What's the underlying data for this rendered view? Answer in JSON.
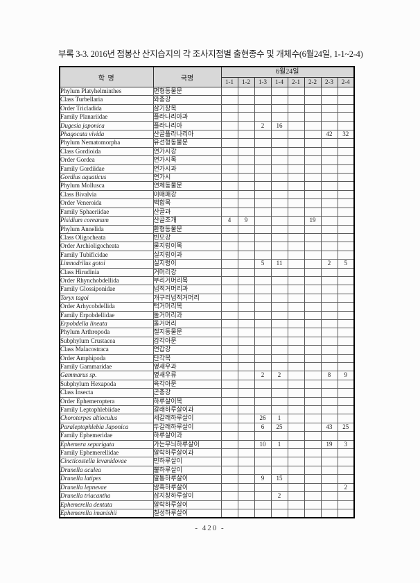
{
  "title": "부록 3-3. 2016년 점봉산 산지습지의 각 조사지점별 출현종수 및 개체수(6월24일, 1-1~2-4)",
  "page_number": "- 420 -",
  "table": {
    "col1_header": "학 명",
    "col2_header": "국명",
    "date_header": "6월24일",
    "site_headers": [
      "1-1",
      "1-2",
      "1-3",
      "1-4",
      "2-1",
      "2-2",
      "2-3",
      "2-4"
    ],
    "rows": [
      {
        "sci": "Phylum Platyhelminthes",
        "kor": "편형동물문",
        "indent": 0,
        "italic": false,
        "values": [
          "",
          "",
          "",
          "",
          "",
          "",
          "",
          ""
        ]
      },
      {
        "sci": "Class Turbellaria",
        "kor": "와충강",
        "indent": 1,
        "italic": false,
        "values": [
          "",
          "",
          "",
          "",
          "",
          "",
          "",
          ""
        ]
      },
      {
        "sci": "Order Tricladida",
        "kor": "삼기장목",
        "indent": 2,
        "italic": false,
        "values": [
          "",
          "",
          "",
          "",
          "",
          "",
          "",
          ""
        ]
      },
      {
        "sci": "Family Planariidae",
        "kor": "플라나리아과",
        "indent": 3,
        "italic": false,
        "values": [
          "",
          "",
          "",
          "",
          "",
          "",
          "",
          ""
        ]
      },
      {
        "sci": "Dugesia japonica",
        "kor": "플라나리아",
        "indent": 0,
        "italic": true,
        "values": [
          "",
          "",
          "2",
          "16",
          "",
          "",
          "",
          ""
        ]
      },
      {
        "sci": "Phagocata vivida",
        "kor": "산골플라나리아",
        "indent": 0,
        "italic": true,
        "values": [
          "",
          "",
          "",
          "",
          "",
          "",
          "42",
          "32"
        ]
      },
      {
        "sci": "Phylum Nematomorpha",
        "kor": "유선형동물문",
        "indent": 0,
        "italic": false,
        "values": [
          "",
          "",
          "",
          "",
          "",
          "",
          "",
          ""
        ]
      },
      {
        "sci": "Class Gordioida",
        "kor": "연가시강",
        "indent": 1,
        "italic": false,
        "values": [
          "",
          "",
          "",
          "",
          "",
          "",
          "",
          ""
        ]
      },
      {
        "sci": "Order Gordea",
        "kor": "연가시목",
        "indent": 2,
        "italic": false,
        "values": [
          "",
          "",
          "",
          "",
          "",
          "",
          "",
          ""
        ]
      },
      {
        "sci": "Family Gordiidae",
        "kor": "연가시과",
        "indent": 3,
        "italic": false,
        "values": [
          "",
          "",
          "",
          "",
          "",
          "",
          "",
          ""
        ]
      },
      {
        "sci": "Gordius aquaticus",
        "kor": "연가시",
        "indent": 0,
        "italic": true,
        "values": [
          "",
          "",
          "",
          "",
          "",
          "",
          "",
          ""
        ]
      },
      {
        "sci": "Phylum Mollusca",
        "kor": "연체동물문",
        "indent": 0,
        "italic": false,
        "values": [
          "",
          "",
          "",
          "",
          "",
          "",
          "",
          ""
        ]
      },
      {
        "sci": "Class Bivalvia",
        "kor": "이매패강",
        "indent": 1,
        "italic": false,
        "values": [
          "",
          "",
          "",
          "",
          "",
          "",
          "",
          ""
        ]
      },
      {
        "sci": "Order Veneroida",
        "kor": "백합목",
        "indent": 2,
        "italic": false,
        "values": [
          "",
          "",
          "",
          "",
          "",
          "",
          "",
          ""
        ]
      },
      {
        "sci": "Family Sphaeriidae",
        "kor": "산골과",
        "indent": 3,
        "italic": false,
        "values": [
          "",
          "",
          "",
          "",
          "",
          "",
          "",
          ""
        ]
      },
      {
        "sci": "Pisidium coreanum",
        "kor": "산골조개",
        "indent": 0,
        "italic": true,
        "values": [
          "4",
          "9",
          "",
          "",
          "",
          "19",
          "",
          ""
        ]
      },
      {
        "sci": "Phylum Annelida",
        "kor": "환형동물문",
        "indent": 0,
        "italic": false,
        "values": [
          "",
          "",
          "",
          "",
          "",
          "",
          "",
          ""
        ]
      },
      {
        "sci": "Class Oligocheata",
        "kor": "빈모강",
        "indent": 1,
        "italic": false,
        "values": [
          "",
          "",
          "",
          "",
          "",
          "",
          "",
          ""
        ]
      },
      {
        "sci": "Order Archioligocheata",
        "kor": "물지렁이목",
        "indent": 2,
        "italic": false,
        "values": [
          "",
          "",
          "",
          "",
          "",
          "",
          "",
          ""
        ]
      },
      {
        "sci": "Family Tubificidae",
        "kor": "실지렁이과",
        "indent": 3,
        "italic": false,
        "values": [
          "",
          "",
          "",
          "",
          "",
          "",
          "",
          ""
        ]
      },
      {
        "sci": "Limnodrilus gotoi",
        "kor": "실지렁이",
        "indent": 0,
        "italic": true,
        "values": [
          "",
          "",
          "5",
          "11",
          "",
          "",
          "2",
          "5"
        ]
      },
      {
        "sci": "Class Hirudinia",
        "kor": "거머리강",
        "indent": 1,
        "italic": false,
        "values": [
          "",
          "",
          "",
          "",
          "",
          "",
          "",
          ""
        ]
      },
      {
        "sci": "Order Rhynchobdellida",
        "kor": "부리거머리목",
        "indent": 2,
        "italic": false,
        "values": [
          "",
          "",
          "",
          "",
          "",
          "",
          "",
          ""
        ]
      },
      {
        "sci": "Family Glossiponidae",
        "kor": "넙적거머리과",
        "indent": 3,
        "italic": false,
        "values": [
          "",
          "",
          "",
          "",
          "",
          "",
          "",
          ""
        ]
      },
      {
        "sci": "Toryx tagoi",
        "kor": "개구리넙적거머리",
        "indent": 0,
        "italic": true,
        "values": [
          "",
          "",
          "",
          "",
          "",
          "",
          "",
          ""
        ]
      },
      {
        "sci": "Order Arhycobdellida",
        "kor": "턱거머리목",
        "indent": 2,
        "italic": false,
        "values": [
          "",
          "",
          "",
          "",
          "",
          "",
          "",
          ""
        ]
      },
      {
        "sci": "Family Erpobdellidae",
        "kor": "돌거머리과",
        "indent": 3,
        "italic": false,
        "values": [
          "",
          "",
          "",
          "",
          "",
          "",
          "",
          ""
        ]
      },
      {
        "sci": "Erpobdella lineata",
        "kor": "돌거머리",
        "indent": 0,
        "italic": true,
        "values": [
          "",
          "",
          "",
          "",
          "",
          "",
          "",
          ""
        ]
      },
      {
        "sci": "Phylum Arthropoda",
        "kor": "절지동물문",
        "indent": 0,
        "italic": false,
        "values": [
          "",
          "",
          "",
          "",
          "",
          "",
          "",
          ""
        ]
      },
      {
        "sci": "Subphylum Crustacea",
        "kor": "갑각아문",
        "indent": 1,
        "italic": false,
        "values": [
          "",
          "",
          "",
          "",
          "",
          "",
          "",
          ""
        ]
      },
      {
        "sci": "Class Malacostraca",
        "kor": "연갑강",
        "indent": 1,
        "italic": false,
        "values": [
          "",
          "",
          "",
          "",
          "",
          "",
          "",
          ""
        ]
      },
      {
        "sci": "Order Amphipoda",
        "kor": "단각목",
        "indent": 2,
        "italic": false,
        "values": [
          "",
          "",
          "",
          "",
          "",
          "",
          "",
          ""
        ]
      },
      {
        "sci": "Family Gammaridae",
        "kor": "옆새우과",
        "indent": 3,
        "italic": false,
        "values": [
          "",
          "",
          "",
          "",
          "",
          "",
          "",
          ""
        ]
      },
      {
        "sci": "Gammarus sp.",
        "kor": "옆새우류",
        "indent": 0,
        "italic": true,
        "values": [
          "",
          "",
          "2",
          "2",
          "",
          "",
          "8",
          "9"
        ]
      },
      {
        "sci": "Subphylum Hexapoda",
        "kor": "육각아문",
        "indent": 1,
        "italic": false,
        "values": [
          "",
          "",
          "",
          "",
          "",
          "",
          "",
          ""
        ]
      },
      {
        "sci": "Class Insecta",
        "kor": "곤충강",
        "indent": 1,
        "italic": false,
        "values": [
          "",
          "",
          "",
          "",
          "",
          "",
          "",
          ""
        ]
      },
      {
        "sci": "Order Ephemeroptera",
        "kor": "하루살이목",
        "indent": 2,
        "italic": false,
        "values": [
          "",
          "",
          "",
          "",
          "",
          "",
          "",
          ""
        ]
      },
      {
        "sci": "Family Leptophlebiidae",
        "kor": "갈래하루살이과",
        "indent": 3,
        "italic": false,
        "values": [
          "",
          "",
          "",
          "",
          "",
          "",
          "",
          ""
        ]
      },
      {
        "sci": "Choroterpes altioculus",
        "kor": "세갈래하루살이",
        "indent": 0,
        "italic": true,
        "values": [
          "",
          "",
          "26",
          "1",
          "",
          "",
          "",
          ""
        ]
      },
      {
        "sci": "Paraleptophlebia Japonica",
        "kor": "두갈래하루살이",
        "indent": 0,
        "italic": true,
        "values": [
          "",
          "",
          "6",
          "25",
          "",
          "",
          "43",
          "25"
        ]
      },
      {
        "sci": "Family Ephemeridae",
        "kor": "하루살이과",
        "indent": 3,
        "italic": false,
        "values": [
          "",
          "",
          "",
          "",
          "",
          "",
          "",
          ""
        ]
      },
      {
        "sci": "Ephemera separigata",
        "kor": "가는무늬하루살이",
        "indent": 0,
        "italic": true,
        "values": [
          "",
          "",
          "10",
          "1",
          "",
          "",
          "19",
          "3"
        ]
      },
      {
        "sci": "Family Ephemerellidae",
        "kor": "알락하루살이과",
        "indent": 3,
        "italic": false,
        "values": [
          "",
          "",
          "",
          "",
          "",
          "",
          "",
          ""
        ]
      },
      {
        "sci": "Cincticostella levanidovae",
        "kor": "민하루살이",
        "indent": 0,
        "italic": true,
        "values": [
          "",
          "",
          "",
          "",
          "",
          "",
          "",
          ""
        ]
      },
      {
        "sci": "Drunella aculea",
        "kor": "뿔하루살이",
        "indent": 0,
        "italic": true,
        "values": [
          "",
          "",
          "",
          "",
          "",
          "",
          "",
          ""
        ]
      },
      {
        "sci": "Drunella latipes",
        "kor": "알통하루살이",
        "indent": 0,
        "italic": true,
        "values": [
          "",
          "",
          "9",
          "15",
          "",
          "",
          "",
          ""
        ]
      },
      {
        "sci": "Drunella lepnevae",
        "kor": "쌍혹하루살이",
        "indent": 0,
        "italic": true,
        "values": [
          "",
          "",
          "",
          "",
          "",
          "",
          "",
          "2"
        ]
      },
      {
        "sci": "Drunella triacantha",
        "kor": "삼지창하루살이",
        "indent": 0,
        "italic": true,
        "values": [
          "",
          "",
          "",
          "2",
          "",
          "",
          "",
          ""
        ]
      },
      {
        "sci": "Ephemerella dentata",
        "kor": "알락하루살이",
        "indent": 0,
        "italic": true,
        "values": [
          "",
          "",
          "",
          "",
          "",
          "",
          "",
          ""
        ]
      },
      {
        "sci": "Ephemerella imanishii",
        "kor": "칠성하루살이",
        "indent": 0,
        "italic": true,
        "values": [
          "",
          "",
          "",
          "",
          "",
          "",
          "",
          ""
        ]
      }
    ]
  }
}
